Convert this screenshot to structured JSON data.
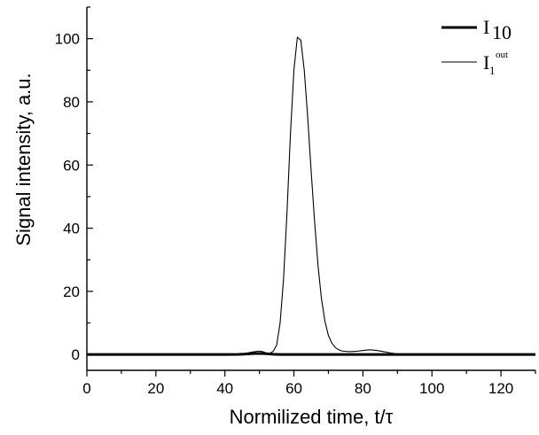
{
  "chart_data": {
    "type": "line",
    "title": "",
    "xlabel": "Normilized time, t/τ",
    "ylabel": "Signal intensity, a.u.",
    "xlim": [
      0,
      130
    ],
    "ylim": [
      -5,
      110
    ],
    "x_ticks": [
      0,
      20,
      40,
      60,
      80,
      100,
      120
    ],
    "x_tick_labels": [
      "0",
      "20",
      "40",
      "60",
      "80",
      "100",
      "120"
    ],
    "y_ticks": [
      0,
      20,
      40,
      60,
      80,
      100
    ],
    "y_tick_labels": [
      "0",
      "20",
      "40",
      "60",
      "80",
      "100"
    ],
    "x_minor_step": 10,
    "y_minor_step": 10,
    "grid": false,
    "legend_position": "top-right",
    "series": [
      {
        "label_base": "I",
        "label_sub": "10",
        "label_sup": "",
        "color": "#000000",
        "style": "thick",
        "x": [
          0,
          40,
          44,
          46,
          48,
          50,
          52,
          54,
          56,
          60,
          70,
          80,
          90,
          100,
          130
        ],
        "y": [
          0,
          0,
          0.05,
          0.15,
          0.3,
          0.35,
          0.25,
          0.1,
          0.02,
          0,
          0,
          0,
          0,
          0,
          0
        ]
      },
      {
        "label_base": "I",
        "label_sub": "1",
        "label_sup": "out",
        "color": "#000000",
        "style": "thin",
        "x": [
          0,
          40,
          44,
          46,
          48,
          50,
          51,
          52,
          53,
          54,
          55,
          56,
          57,
          58,
          59,
          60,
          61,
          62,
          63,
          64,
          65,
          66,
          67,
          68,
          69,
          70,
          71,
          72,
          73,
          74,
          76,
          78,
          80,
          82,
          84,
          86,
          88,
          90,
          95,
          100,
          130
        ],
        "y": [
          0,
          0,
          0.1,
          0.4,
          0.8,
          1.1,
          0.9,
          0.5,
          0.4,
          1,
          3,
          10,
          24,
          45,
          70,
          90,
          100.5,
          99.5,
          90,
          75,
          58,
          42,
          28,
          17.5,
          10.5,
          6,
          3.6,
          2.2,
          1.5,
          1.1,
          0.9,
          1,
          1.3,
          1.5,
          1.3,
          0.9,
          0.5,
          0.2,
          0,
          0,
          0
        ]
      }
    ]
  }
}
